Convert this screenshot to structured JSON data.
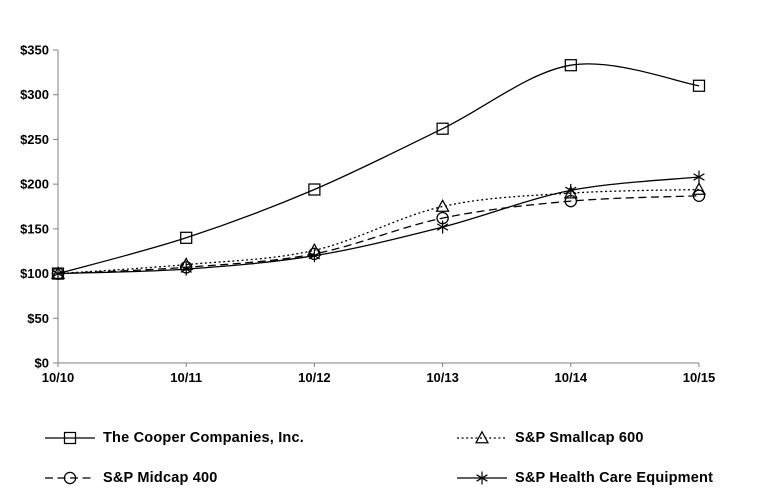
{
  "chart_data": {
    "type": "line",
    "title": "",
    "xlabel": "",
    "ylabel": "",
    "x_categories": [
      "10/10",
      "10/11",
      "10/12",
      "10/13",
      "10/14",
      "10/15"
    ],
    "ylim": [
      0,
      350
    ],
    "ytick_step": 50,
    "ytick_labels": [
      "$0",
      "$50",
      "$100",
      "$150",
      "$200",
      "$250",
      "$300",
      "$350"
    ],
    "grid": false,
    "legend_position": "bottom two-column",
    "series": [
      {
        "name": "The Cooper Companies, Inc.",
        "marker": "square",
        "line_style": "solid",
        "values": [
          100,
          140,
          194,
          262,
          333,
          310
        ]
      },
      {
        "name": "S&P Smallcap 600",
        "marker": "triangle",
        "line_style": "dotted",
        "values": [
          100,
          110,
          126,
          175,
          190,
          194
        ]
      },
      {
        "name": "S&P Midcap 400",
        "marker": "circle",
        "line_style": "dashed",
        "values": [
          100,
          107,
          122,
          162,
          181,
          187
        ]
      },
      {
        "name": "S&P Health Care Equipment",
        "marker": "asterisk",
        "line_style": "solid",
        "values": [
          100,
          105,
          120,
          152,
          193,
          208
        ]
      }
    ],
    "colors": {
      "series_line": "#000000",
      "axis": "#808080",
      "tick": "#808080",
      "text": "#000000",
      "background": "#ffffff"
    }
  }
}
